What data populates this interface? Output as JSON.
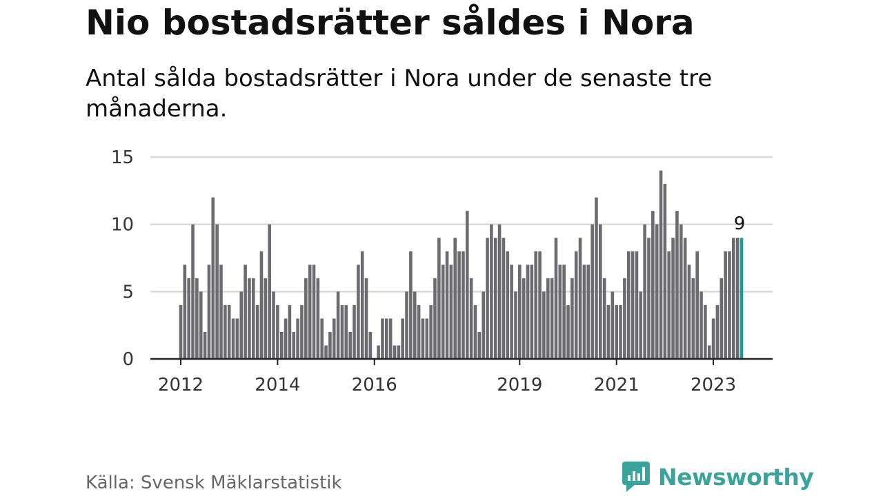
{
  "title": "Nio bostadsrätter såldes i Nora",
  "subtitle": "Antal sålda bostadsrätter i Nora under de senaste tre månaderna.",
  "source": "Källa: Svensk Mäklarstatistik",
  "brand": {
    "name": "Newsworthy",
    "icon": "newsworthy-logo-icon",
    "color": "#3aa39a"
  },
  "colors": {
    "bar": "#6b6b70",
    "highlight": "#1a9e9a",
    "grid": "#d9d9d9",
    "axis": "#222222"
  },
  "chart_data": {
    "type": "bar",
    "title": "Nio bostadsrätter såldes i Nora",
    "xlabel": "",
    "ylabel": "",
    "ylim": [
      0,
      15
    ],
    "yticks": [
      0,
      5,
      10,
      15
    ],
    "grid": true,
    "x_start": "2012-01",
    "xtick_labels": [
      "2012",
      "2014",
      "2016",
      "2019",
      "2021",
      "2023"
    ],
    "xtick_months": [
      "2012-01",
      "2014-01",
      "2016-01",
      "2019-01",
      "2021-01",
      "2023-01"
    ],
    "highlight_last": true,
    "last_value_label": "9",
    "values": [
      4,
      7,
      6,
      10,
      6,
      5,
      2,
      7,
      12,
      10,
      7,
      4,
      4,
      3,
      3,
      5,
      7,
      6,
      6,
      4,
      8,
      6,
      10,
      5,
      4,
      2,
      3,
      4,
      2,
      3,
      4,
      6,
      7,
      7,
      6,
      3,
      1,
      2,
      3,
      5,
      4,
      4,
      2,
      4,
      7,
      8,
      6,
      2,
      0,
      1,
      3,
      3,
      3,
      1,
      1,
      3,
      5,
      8,
      5,
      4,
      3,
      3,
      4,
      6,
      9,
      7,
      8,
      7,
      9,
      8,
      8,
      11,
      6,
      4,
      2,
      5,
      9,
      10,
      9,
      10,
      9,
      8,
      7,
      5,
      7,
      6,
      7,
      7,
      8,
      8,
      5,
      6,
      6,
      9,
      7,
      7,
      4,
      6,
      8,
      9,
      7,
      7,
      10,
      12,
      10,
      6,
      4,
      5,
      4,
      4,
      6,
      8,
      8,
      8,
      5,
      10,
      9,
      11,
      10,
      14,
      13,
      8,
      9,
      11,
      10,
      9,
      7,
      6,
      8,
      5,
      4,
      1,
      3,
      4,
      6,
      8,
      8,
      9,
      9,
      9
    ]
  }
}
